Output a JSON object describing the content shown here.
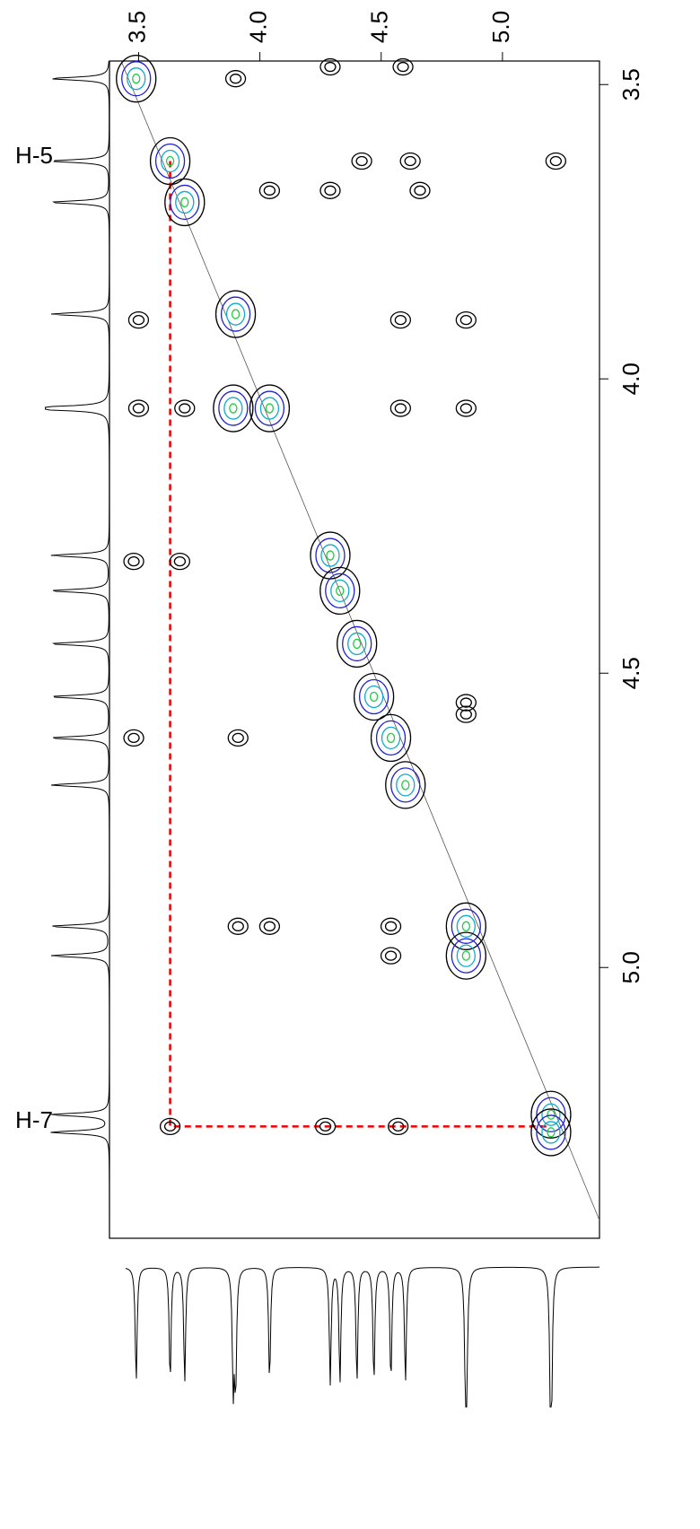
{
  "chart_data": {
    "type": "contour",
    "xlim": [
      3.38,
      5.4
    ],
    "xticks": [
      3.5,
      {
        "value": 4,
        "label": "4.0"
      },
      4.5,
      {
        "value": 5,
        "label": "5.0"
      }
    ],
    "ylim": [
      3.46,
      5.46
    ],
    "yticks": [
      3.5,
      {
        "value": 4,
        "label": "4.0"
      },
      4.5,
      {
        "value": 5,
        "label": "5.0"
      }
    ],
    "annotations": [
      "H-5",
      "H-7"
    ],
    "peaks": [
      {
        "f1": 3.49,
        "f2": 3.49
      },
      {
        "f1": 3.63,
        "f2": 3.63
      },
      {
        "f1": 3.69,
        "f2": 3.7
      },
      {
        "f1": 3.9,
        "f2": 3.89
      },
      {
        "f1": 4.04,
        "f2": 4.05
      },
      {
        "f1": 4.29,
        "f2": 4.3
      },
      {
        "f1": 4.33,
        "f2": 4.36
      },
      {
        "f1": 4.4,
        "f2": 4.45
      },
      {
        "f1": 4.47,
        "f2": 4.54
      },
      {
        "f1": 4.54,
        "f2": 4.61
      },
      {
        "f1": 4.6,
        "f2": 4.69
      },
      {
        "f1": 4.54,
        "f2": 4.93
      },
      {
        "f1": 4.54,
        "f2": 4.98
      },
      {
        "f1": 4.85,
        "f2": 4.93
      },
      {
        "f1": 4.85,
        "f2": 4.98
      },
      {
        "f1": 5.2,
        "f2": 5.25
      },
      {
        "f1": 5.2,
        "f2": 5.28
      },
      {
        "f1": 3.5,
        "f2": 3.9
      },
      {
        "f1": 3.5,
        "f2": 4.05
      },
      {
        "f1": 3.89,
        "f2": 4.05
      },
      {
        "f1": 3.69,
        "f2": 4.05
      },
      {
        "f1": 4.58,
        "f2": 3.9
      },
      {
        "f1": 4.58,
        "f2": 4.05
      },
      {
        "f1": 4.85,
        "f2": 3.9
      },
      {
        "f1": 4.85,
        "f2": 4.05
      },
      {
        "f1": 4.42,
        "f2": 3.63
      },
      {
        "f1": 4.62,
        "f2": 3.63
      },
      {
        "f1": 5.22,
        "f2": 3.63
      },
      {
        "f1": 4.04,
        "f2": 3.68
      },
      {
        "f1": 4.29,
        "f2": 3.68
      },
      {
        "f1": 4.66,
        "f2": 3.68
      },
      {
        "f1": 3.9,
        "f2": 3.49
      },
      {
        "f1": 4.29,
        "f2": 3.47
      },
      {
        "f1": 4.59,
        "f2": 3.47
      },
      {
        "f1": 3.63,
        "f2": 5.27
      },
      {
        "f1": 4.27,
        "f2": 5.27
      },
      {
        "f1": 4.57,
        "f2": 5.27
      },
      {
        "f1": 4.85,
        "f2": 4.55
      },
      {
        "f1": 4.85,
        "f2": 4.57
      },
      {
        "f1": 3.91,
        "f2": 4.93
      },
      {
        "f1": 4.04,
        "f2": 4.93
      },
      {
        "f1": 3.48,
        "f2": 4.31
      },
      {
        "f1": 3.67,
        "f2": 4.31
      },
      {
        "f1": 3.48,
        "f2": 4.61
      },
      {
        "f1": 3.91,
        "f2": 4.61
      }
    ]
  }
}
